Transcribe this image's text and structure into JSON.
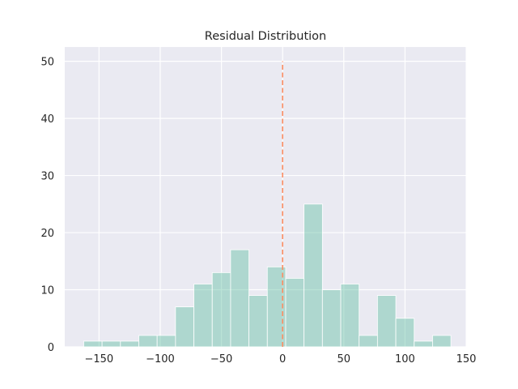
{
  "chart_data": {
    "type": "bar",
    "title": "Residual Distribution",
    "xlabel": "",
    "ylabel": "",
    "xlim": [
      -178,
      150
    ],
    "ylim": [
      0,
      52.5
    ],
    "xticks": [
      -150,
      -100,
      -50,
      0,
      50,
      100,
      150
    ],
    "yticks": [
      0,
      10,
      20,
      30,
      40,
      50
    ],
    "grid": true,
    "bin_start": -162.5,
    "bin_width": 15,
    "counts": [
      1,
      1,
      1,
      2,
      2,
      7,
      11,
      13,
      17,
      9,
      14,
      12,
      25,
      10,
      11,
      2,
      9,
      5,
      1,
      2
    ],
    "reference_line": {
      "x": 0,
      "y_top": 50,
      "style": "dashed"
    },
    "colors": {
      "bar": "#66c2a5",
      "bar_opacity": 0.45,
      "reference_line": "#fc8d62",
      "background": "#eaeaf2",
      "grid": "#ffffff"
    }
  }
}
